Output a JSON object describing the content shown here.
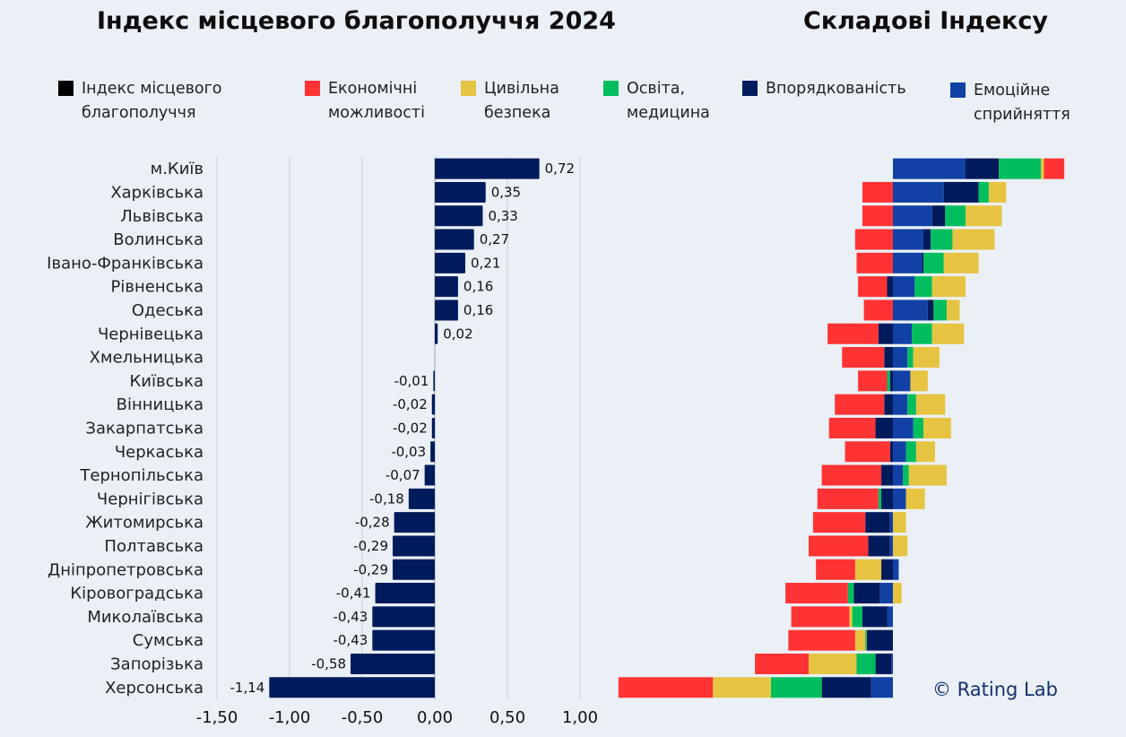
{
  "titles": {
    "left": "Індекс місцевого благополуччя 2024",
    "right": "Складові Індексу"
  },
  "legend": [
    {
      "label": "Індекс місцевого\nблагополуччя",
      "color": "#000000",
      "key": "index"
    },
    {
      "label": "Економічні\nможливості",
      "color": "#ff3333",
      "key": "econ"
    },
    {
      "label": "Цивільна\nбезпека",
      "color": "#e6c441",
      "key": "security"
    },
    {
      "label": "Освіта,\nмедицина",
      "color": "#00be5e",
      "key": "edu"
    },
    {
      "label": "Впорядкованість",
      "color": "#001b5c",
      "key": "order"
    },
    {
      "label": "Емоційне\nсприйняття",
      "color": "#1241a6",
      "key": "emotion"
    }
  ],
  "credit": "© Rating Lab",
  "chart_data": [
    {
      "type": "bar",
      "orientation": "horizontal",
      "title": "Індекс місцевого благополуччя 2024",
      "categories": [
        "м.Київ",
        "Харківська",
        "Львівська",
        "Волинська",
        "Івано-Франківська",
        "Рівненська",
        "Одеська",
        "Чернівецька",
        "Хмельницька",
        "Київська",
        "Вінницька",
        "Закарпатська",
        "Черкаська",
        "Тернопільська",
        "Чернігівська",
        "Житомирська",
        "Полтавська",
        "Дніпропетровська",
        "Кіровоградська",
        "Миколаївська",
        "Сумська",
        "Запорізька",
        "Херсонська"
      ],
      "values": [
        0.72,
        0.35,
        0.33,
        0.27,
        0.21,
        0.16,
        0.16,
        0.02,
        0.0,
        -0.01,
        -0.02,
        -0.02,
        -0.03,
        -0.07,
        -0.18,
        -0.28,
        -0.29,
        -0.29,
        -0.41,
        -0.43,
        -0.43,
        -0.58,
        -1.14
      ],
      "value_labels": [
        "0,72",
        "0,35",
        "0,33",
        "0,27",
        "0,21",
        "0,16",
        "0,16",
        "0,02",
        "",
        "-0,01",
        "-0,02",
        "-0,02",
        "-0,03",
        "-0,07",
        "-0,18",
        "-0,28",
        "-0,29",
        "-0,29",
        "-0,41",
        "-0,43",
        "-0,43",
        "-0,58",
        "-1,14"
      ],
      "bar_color": "#001b5c",
      "xlim": [
        -1.5,
        1.0
      ],
      "xticks": [
        -1.5,
        -1.0,
        -0.5,
        0.0,
        0.5,
        1.0
      ],
      "xtick_labels": [
        "-1,50",
        "-1,00",
        "-0,50",
        "0,00",
        "0,50",
        "1,00"
      ],
      "grid": true,
      "xlabel": "",
      "ylabel": ""
    },
    {
      "type": "bar",
      "orientation": "horizontal",
      "stacked": "diverging",
      "title": "Складові Індексу",
      "note": "values estimated from bar lengths (no axis shown); same units as index",
      "categories": [
        "м.Київ",
        "Харківська",
        "Львівська",
        "Волинська",
        "Івано-Франківська",
        "Рівненська",
        "Одеська",
        "Чернівецька",
        "Хмельницька",
        "Київська",
        "Вінницька",
        "Закарпатська",
        "Черкаська",
        "Тернопільська",
        "Чернігівська",
        "Житомирська",
        "Полтавська",
        "Дніпропетровська",
        "Кіровоградська",
        "Миколаївська",
        "Сумська",
        "Запорізька",
        "Херсонська"
      ],
      "series_order_positive": [
        "emotion",
        "order",
        "edu",
        "security",
        "econ"
      ],
      "series_order_negative": [
        "emotion",
        "order",
        "edu",
        "security",
        "econ"
      ],
      "series": [
        {
          "key": "econ",
          "name": "Економічні можливості",
          "color": "#ff3333",
          "values": [
            0.14,
            -0.21,
            -0.21,
            -0.26,
            -0.25,
            -0.2,
            -0.2,
            -0.35,
            -0.29,
            -0.2,
            -0.34,
            -0.32,
            -0.31,
            -0.41,
            -0.42,
            -0.36,
            -0.41,
            -0.27,
            -0.43,
            -0.4,
            -0.46,
            -0.37,
            -0.65
          ]
        },
        {
          "key": "security",
          "name": "Цивільна безпека",
          "color": "#e6c441",
          "values": [
            0.02,
            0.12,
            0.25,
            0.29,
            0.24,
            0.23,
            0.09,
            0.22,
            0.18,
            0.12,
            0.2,
            0.19,
            0.13,
            0.26,
            0.13,
            0.09,
            0.1,
            -0.18,
            0.06,
            -0.02,
            -0.07,
            -0.33,
            -0.4
          ]
        },
        {
          "key": "edu",
          "name": "Освіта, медицина",
          "color": "#00be5e",
          "values": [
            0.29,
            0.07,
            0.14,
            0.15,
            0.14,
            0.12,
            0.09,
            0.14,
            0.04,
            -0.02,
            0.06,
            0.07,
            0.07,
            0.04,
            -0.02,
            0.0,
            0.0,
            0.0,
            -0.04,
            -0.07,
            -0.01,
            -0.13,
            -0.35
          ]
        },
        {
          "key": "order",
          "name": "Впорядкованість",
          "color": "#001b5c",
          "values": [
            0.23,
            0.24,
            0.09,
            0.05,
            0.01,
            -0.04,
            0.04,
            -0.1,
            -0.06,
            -0.02,
            -0.06,
            -0.12,
            -0.02,
            -0.08,
            -0.08,
            -0.17,
            -0.15,
            -0.08,
            -0.18,
            -0.17,
            -0.18,
            -0.11,
            -0.34
          ]
        },
        {
          "key": "emotion",
          "name": "Емоційне сприйняття",
          "color": "#1241a6",
          "values": [
            0.5,
            0.35,
            0.27,
            0.21,
            0.2,
            0.15,
            0.24,
            0.13,
            0.1,
            0.12,
            0.1,
            0.14,
            0.09,
            0.07,
            0.09,
            -0.02,
            -0.02,
            0.04,
            -0.09,
            -0.04,
            0.0,
            -0.01,
            -0.15
          ]
        }
      ]
    }
  ]
}
